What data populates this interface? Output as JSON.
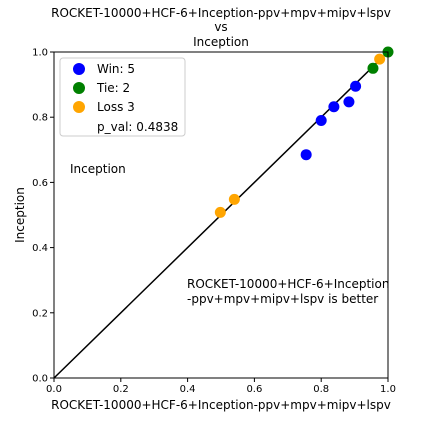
{
  "chart_data": {
    "type": "scatter",
    "title_lines": [
      "ROCKET-10000+HCF-6+Inception-ppv+mpv+mipv+lspv",
      "vs",
      "Inception"
    ],
    "xlabel": "ROCKET-10000+HCF-6+Inception-ppv+mpv+mipv+lspv",
    "ylabel": "Inception",
    "xlim": [
      0,
      1
    ],
    "ylim": [
      0,
      1
    ],
    "xticks": [
      "0.0",
      "0.2",
      "0.4",
      "0.6",
      "0.8",
      "1.0"
    ],
    "yticks": [
      "0.0",
      "0.2",
      "0.4",
      "0.6",
      "0.8",
      "1.0"
    ],
    "grid": false,
    "legend_position": "top-left",
    "diagonal": true,
    "series": [
      {
        "name": "Win: 5",
        "color": "#0000ff",
        "points": [
          {
            "x": 0.755,
            "y": 0.685
          },
          {
            "x": 0.8,
            "y": 0.79
          },
          {
            "x": 0.838,
            "y": 0.832
          },
          {
            "x": 0.883,
            "y": 0.847
          },
          {
            "x": 0.903,
            "y": 0.895
          }
        ]
      },
      {
        "name": "Tie: 2",
        "color": "#008000",
        "points": [
          {
            "x": 0.955,
            "y": 0.95
          },
          {
            "x": 1.0,
            "y": 1.0
          }
        ]
      },
      {
        "name": "Loss 3",
        "color": "#ffa500",
        "points": [
          {
            "x": 0.498,
            "y": 0.508
          },
          {
            "x": 0.54,
            "y": 0.548
          },
          {
            "x": 0.975,
            "y": 0.978
          }
        ]
      }
    ],
    "p_val_text": "p_val: 0.4838",
    "annotation_upper": "Inception",
    "annotation_lower_lines": [
      "ROCKET-10000+HCF-6+Inception",
      "-ppv+mpv+mipv+lspv is better"
    ]
  }
}
